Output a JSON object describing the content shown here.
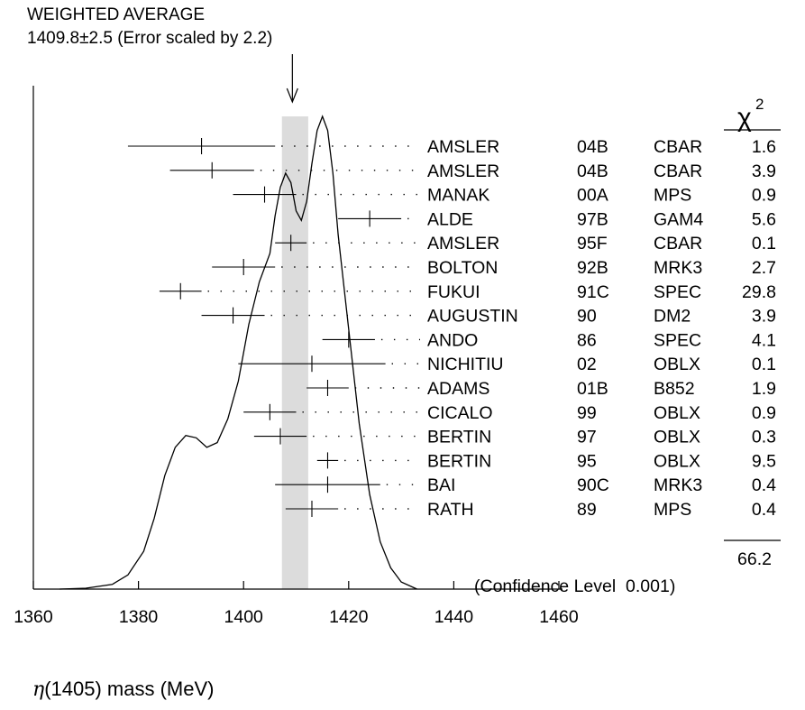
{
  "header": {
    "line1": "WEIGHTED AVERAGE",
    "line2": "1409.8±2.5 (Error scaled by 2.2)"
  },
  "chi2_header": {
    "symbol": "χ",
    "exponent": "2"
  },
  "chart_data": {
    "type": "ideogram",
    "xlabel_symbol": "η",
    "xlabel_rest": "(1405) mass (MeV)",
    "xlim": [
      1360,
      1460
    ],
    "xticks": [
      1360,
      1380,
      1400,
      1420,
      1440,
      1460
    ],
    "weighted_average": {
      "value": 1409.8,
      "error": 2.5,
      "scale_factor": 2.2
    },
    "measurements": [
      {
        "author": "AMSLER",
        "year": "04B",
        "tech": "CBAR",
        "chi2": "1.6",
        "value": 1392,
        "low": 1378,
        "high": 1406
      },
      {
        "author": "AMSLER",
        "year": "04B",
        "tech": "CBAR",
        "chi2": "3.9",
        "value": 1394,
        "low": 1386,
        "high": 1402
      },
      {
        "author": "MANAK",
        "year": "00A",
        "tech": "MPS",
        "chi2": "0.9",
        "value": 1404,
        "low": 1398,
        "high": 1410
      },
      {
        "author": "ALDE",
        "year": "97B",
        "tech": "GAM4",
        "chi2": "5.6",
        "value": 1424,
        "low": 1418,
        "high": 1430
      },
      {
        "author": "AMSLER",
        "year": "95F",
        "tech": "CBAR",
        "chi2": "0.1",
        "value": 1409,
        "low": 1406,
        "high": 1412
      },
      {
        "author": "BOLTON",
        "year": "92B",
        "tech": "MRK3",
        "chi2": "2.7",
        "value": 1400,
        "low": 1394,
        "high": 1406
      },
      {
        "author": "FUKUI",
        "year": "91C",
        "tech": "SPEC",
        "chi2": "29.8",
        "value": 1388,
        "low": 1384,
        "high": 1392
      },
      {
        "author": "AUGUSTIN",
        "year": "90",
        "tech": "DM2",
        "chi2": "3.9",
        "value": 1398,
        "low": 1392,
        "high": 1404
      },
      {
        "author": "ANDO",
        "year": "86",
        "tech": "SPEC",
        "chi2": "4.1",
        "value": 1420,
        "low": 1415,
        "high": 1425
      },
      {
        "author": "NICHITIU",
        "year": "02",
        "tech": "OBLX",
        "chi2": "0.1",
        "value": 1413,
        "low": 1399,
        "high": 1427
      },
      {
        "author": "ADAMS",
        "year": "01B",
        "tech": "B852",
        "chi2": "1.9",
        "value": 1416,
        "low": 1412,
        "high": 1420
      },
      {
        "author": "CICALO",
        "year": "99",
        "tech": "OBLX",
        "chi2": "0.9",
        "value": 1405,
        "low": 1400,
        "high": 1410
      },
      {
        "author": "BERTIN",
        "year": "97",
        "tech": "OBLX",
        "chi2": "0.3",
        "value": 1407,
        "low": 1402,
        "high": 1412
      },
      {
        "author": "BERTIN",
        "year": "95",
        "tech": "OBLX",
        "chi2": "9.5",
        "value": 1416,
        "low": 1414,
        "high": 1418
      },
      {
        "author": "BAI",
        "year": "90C",
        "tech": "MRK3",
        "chi2": "0.4",
        "value": 1416,
        "low": 1406,
        "high": 1426
      },
      {
        "author": "RATH",
        "year": "89",
        "tech": "MPS",
        "chi2": "0.4",
        "value": 1413,
        "low": 1408,
        "high": 1418
      }
    ],
    "chi2_total": "66.2",
    "confidence_text": "(Confidence Level  0.001)",
    "ideogram_curve": [
      [
        1365,
        0.0
      ],
      [
        1370,
        0.002
      ],
      [
        1375,
        0.01
      ],
      [
        1378,
        0.03
      ],
      [
        1381,
        0.08
      ],
      [
        1383,
        0.15
      ],
      [
        1385,
        0.24
      ],
      [
        1387,
        0.3
      ],
      [
        1389,
        0.325
      ],
      [
        1391,
        0.32
      ],
      [
        1393,
        0.3
      ],
      [
        1395,
        0.31
      ],
      [
        1397,
        0.36
      ],
      [
        1399,
        0.44
      ],
      [
        1401,
        0.56
      ],
      [
        1403,
        0.65
      ],
      [
        1405,
        0.71
      ],
      [
        1406,
        0.79
      ],
      [
        1407,
        0.85
      ],
      [
        1408,
        0.88
      ],
      [
        1409,
        0.86
      ],
      [
        1410,
        0.8
      ],
      [
        1411,
        0.78
      ],
      [
        1412,
        0.82
      ],
      [
        1413,
        0.9
      ],
      [
        1414,
        0.97
      ],
      [
        1415,
        1.0
      ],
      [
        1416,
        0.97
      ],
      [
        1417,
        0.88
      ],
      [
        1418,
        0.75
      ],
      [
        1420,
        0.55
      ],
      [
        1422,
        0.35
      ],
      [
        1424,
        0.2
      ],
      [
        1426,
        0.1
      ],
      [
        1428,
        0.045
      ],
      [
        1430,
        0.015
      ],
      [
        1433,
        0.0
      ]
    ]
  }
}
